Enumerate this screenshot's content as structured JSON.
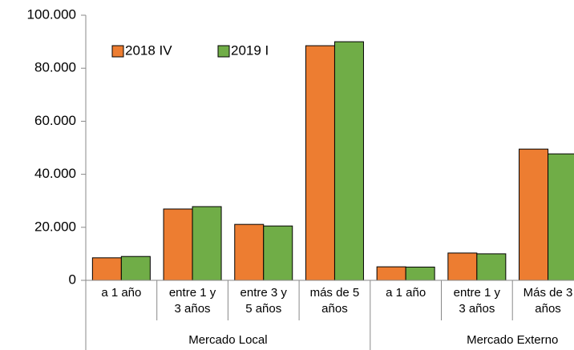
{
  "chart_data": {
    "type": "bar",
    "groups": [
      {
        "name": "Mercado Local",
        "categories": [
          "a 1 año",
          "entre 1 y\n3 años",
          "entre 3 y\n5 años",
          "más de 5\naños"
        ]
      },
      {
        "name": "Mercado Externo",
        "categories": [
          "a 1 año",
          "entre 1 y\n3 años",
          "Más de 3\naños"
        ]
      }
    ],
    "series": [
      {
        "name": "2018 IV",
        "color": "#ed7d31",
        "values": [
          8500,
          26900,
          21100,
          88500,
          5100,
          10300,
          49500
        ]
      },
      {
        "name": "2019 I",
        "color": "#70ad47",
        "values": [
          9000,
          27800,
          20500,
          90000,
          5000,
          10000,
          47700
        ]
      }
    ],
    "ylim": [
      0,
      100000
    ],
    "yticks": [
      0,
      {
        "value": 20000,
        "label": "20.000"
      },
      {
        "value": 40000,
        "label": "40.000"
      },
      {
        "value": 60000,
        "label": "60.000"
      },
      {
        "value": 80000,
        "label": "80.000"
      },
      {
        "value": 100000,
        "label": "100.000"
      }
    ],
    "legend": "top-left"
  }
}
